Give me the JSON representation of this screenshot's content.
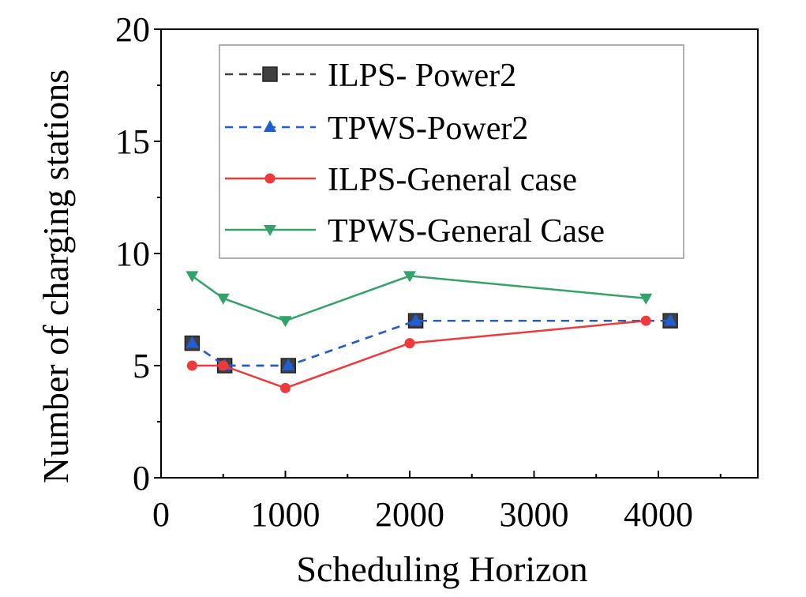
{
  "chart_data": {
    "type": "line",
    "title": "",
    "xlabel": "Scheduling Horizon",
    "ylabel": "Number of charging stations",
    "xlim": [
      0,
      4800
    ],
    "ylim": [
      0,
      20
    ],
    "x_ticks": [
      0,
      1000,
      2000,
      3000,
      4000
    ],
    "x_tick_labels": [
      "0",
      "1000",
      "2000",
      "3000",
      "4000"
    ],
    "y_ticks": [
      0,
      5,
      10,
      15,
      20
    ],
    "y_tick_labels": [
      "0",
      "5",
      "10",
      "15",
      "20"
    ],
    "grid": false,
    "legend_position": "top-right",
    "series": [
      {
        "name": "ILPS- Power2",
        "color": "#404040",
        "line_style": "dashed",
        "marker": "square",
        "x": [
          250,
          512,
          1024,
          2048,
          4096
        ],
        "y": [
          6,
          5,
          5,
          7,
          7
        ]
      },
      {
        "name": "TPWS-Power2",
        "color": "#1f5fd6",
        "line_style": "dashed",
        "marker": "triangle-up",
        "x": [
          250,
          512,
          1024,
          2048,
          4096
        ],
        "y": [
          6,
          5,
          5,
          7,
          7
        ]
      },
      {
        "name": "ILPS-General case",
        "color": "#ee3a3a",
        "line_style": "solid",
        "marker": "circle",
        "x": [
          250,
          500,
          1000,
          2000,
          3900
        ],
        "y": [
          5,
          5,
          4,
          6,
          7
        ]
      },
      {
        "name": "TPWS-General Case",
        "color": "#33a36a",
        "line_style": "solid",
        "marker": "triangle-down",
        "x": [
          250,
          500,
          1000,
          2000,
          3900
        ],
        "y": [
          9,
          8,
          7,
          9,
          8
        ]
      }
    ]
  }
}
